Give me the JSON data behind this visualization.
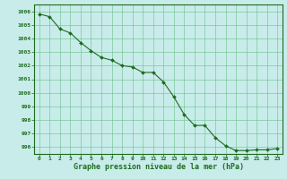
{
  "x": [
    0,
    1,
    2,
    3,
    4,
    5,
    6,
    7,
    8,
    9,
    10,
    11,
    12,
    13,
    14,
    15,
    16,
    17,
    18,
    19,
    20,
    21,
    22,
    23
  ],
  "y": [
    1005.8,
    1005.6,
    1004.7,
    1004.4,
    1003.7,
    1003.1,
    1002.6,
    1002.4,
    1002.0,
    1001.9,
    1001.5,
    1001.5,
    1000.8,
    999.7,
    998.4,
    997.6,
    997.6,
    996.7,
    996.1,
    995.75,
    995.75,
    995.8,
    995.8,
    995.9
  ],
  "xlabel": "Graphe pression niveau de la mer (hPa)",
  "ylim_min": 995.5,
  "ylim_max": 1006.5,
  "yticks": [
    996,
    997,
    998,
    999,
    1000,
    1001,
    1002,
    1003,
    1004,
    1005,
    1006
  ],
  "line_color": "#1e6b1e",
  "marker_color": "#1e6b1e",
  "bg_color": "#c8ecea",
  "grid_color": "#6abf8a",
  "xlabel_color": "#1e6b1e",
  "tick_color": "#1e6b1e",
  "border_color": "#1e6b1e"
}
